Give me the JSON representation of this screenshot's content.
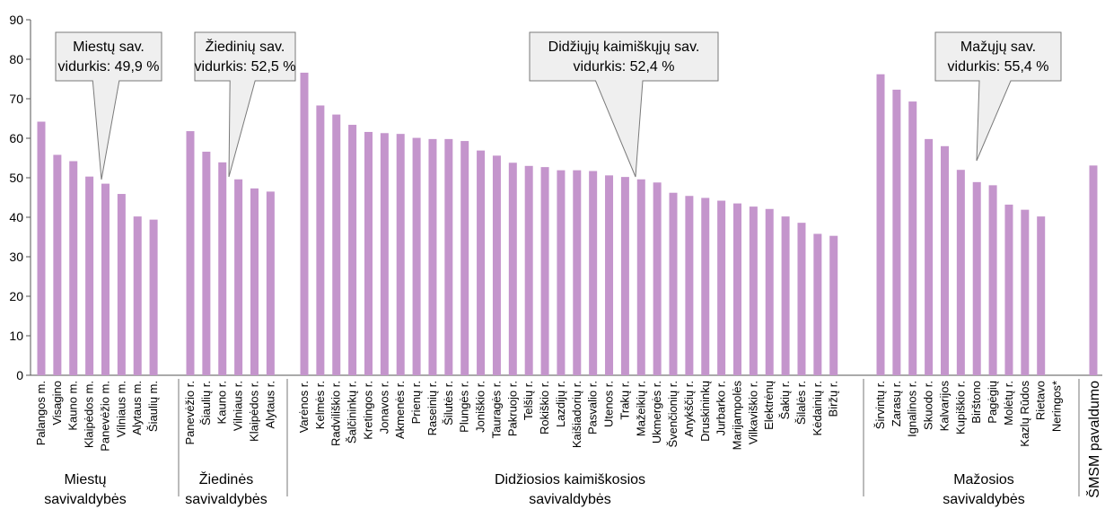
{
  "chart_data": {
    "type": "bar",
    "ylim": [
      0,
      90
    ],
    "yticks": [
      0,
      10,
      20,
      30,
      40,
      50,
      60,
      70,
      80,
      90
    ],
    "grid": false,
    "bar_color": "#c495cc",
    "groups": [
      {
        "label": [
          "Miestų",
          "savivaldybės"
        ],
        "categories": [
          "Palangos m.",
          "Visagino",
          "Kauno m.",
          "Klaipėdos m.",
          "Panevėžio m.",
          "Vilniaus m.",
          "Alytaus m.",
          "Šiaulių m."
        ],
        "values": [
          64.2,
          55.8,
          54.2,
          50.3,
          48.5,
          45.9,
          40.2,
          39.4
        ],
        "callout": [
          "Miestų sav.",
          "vidurkis: 49,9 %"
        ]
      },
      {
        "label": [
          "Žiedinės",
          "savivaldybės"
        ],
        "categories": [
          "Panevėžio r.",
          "Šiaulių r.",
          "Kauno r.",
          "Vilniaus r.",
          "Klaipėdos r.",
          "Alytaus r."
        ],
        "values": [
          61.8,
          56.6,
          53.9,
          49.6,
          47.3,
          46.5
        ],
        "callout": [
          "Žiedinių  sav.",
          "vidurkis: 52,5 %"
        ]
      },
      {
        "label": [
          "Didžiosios kaimiškosios",
          "savivaldybės"
        ],
        "categories": [
          "Varėnos r.",
          "Kelmės r.",
          "Radviliškio r.",
          "Šalčininkų r.",
          "Kretingos r.",
          "Jonavos r.",
          "Akmenės r.",
          "Prienų r.",
          "Raseinių r.",
          "Šilutės r.",
          "Plungės r.",
          "Joniškio r.",
          "Tauragės r.",
          "Pakruojo r.",
          "Telšių r.",
          "Rokiškio r.",
          "Lazdijų r.",
          "Kaišiadorių r.",
          "Pasvalio r.",
          "Utenos r.",
          "Trakų r.",
          "Mažeikių r.",
          "Ukmergės r.",
          "Švenčionių r.",
          "Anykščių r.",
          "Druskininkų",
          "Jurbarko r.",
          "Marijampolės",
          "Vilkaviškio r.",
          "Elektrėnų",
          "Šakių r.",
          "Šilalės r.",
          "Kėdainių r.",
          "Biržų r."
        ],
        "values": [
          76.6,
          68.3,
          66.0,
          63.4,
          61.6,
          61.3,
          61.1,
          60.1,
          59.8,
          59.8,
          59.3,
          56.9,
          55.6,
          53.8,
          53.0,
          52.7,
          51.9,
          51.9,
          51.7,
          50.6,
          50.2,
          49.6,
          48.8,
          46.2,
          45.4,
          44.9,
          44.2,
          43.5,
          42.7,
          42.1,
          40.2,
          38.6,
          35.8,
          35.3
        ],
        "callout": [
          "Didžiųjų kaimiškųjų sav.",
          "vidurkis: 52,4 %"
        ]
      },
      {
        "label": [
          "Mažosios",
          "savivaldybės"
        ],
        "categories": [
          "Širvintų r.",
          "Zarasų r.",
          "Ignalinos r.",
          "Skuodo r.",
          "Kalvarijos",
          "Kupiškio r.",
          "Birštono",
          "Pagėgių",
          "Molėtų r.",
          "Kazlų Rūdos",
          "Rietavo",
          "Neringos*"
        ],
        "values": [
          76.2,
          72.3,
          69.3,
          59.8,
          58.0,
          52.0,
          48.9,
          48.1,
          43.2,
          41.9,
          40.2,
          null
        ],
        "callout": [
          "Mažųjų sav.",
          "vidurkis: 55,4 %"
        ]
      },
      {
        "label": [
          "ŠMSM pavaldumo"
        ],
        "categories": [],
        "values": [
          53.1
        ],
        "callout": null
      }
    ]
  }
}
